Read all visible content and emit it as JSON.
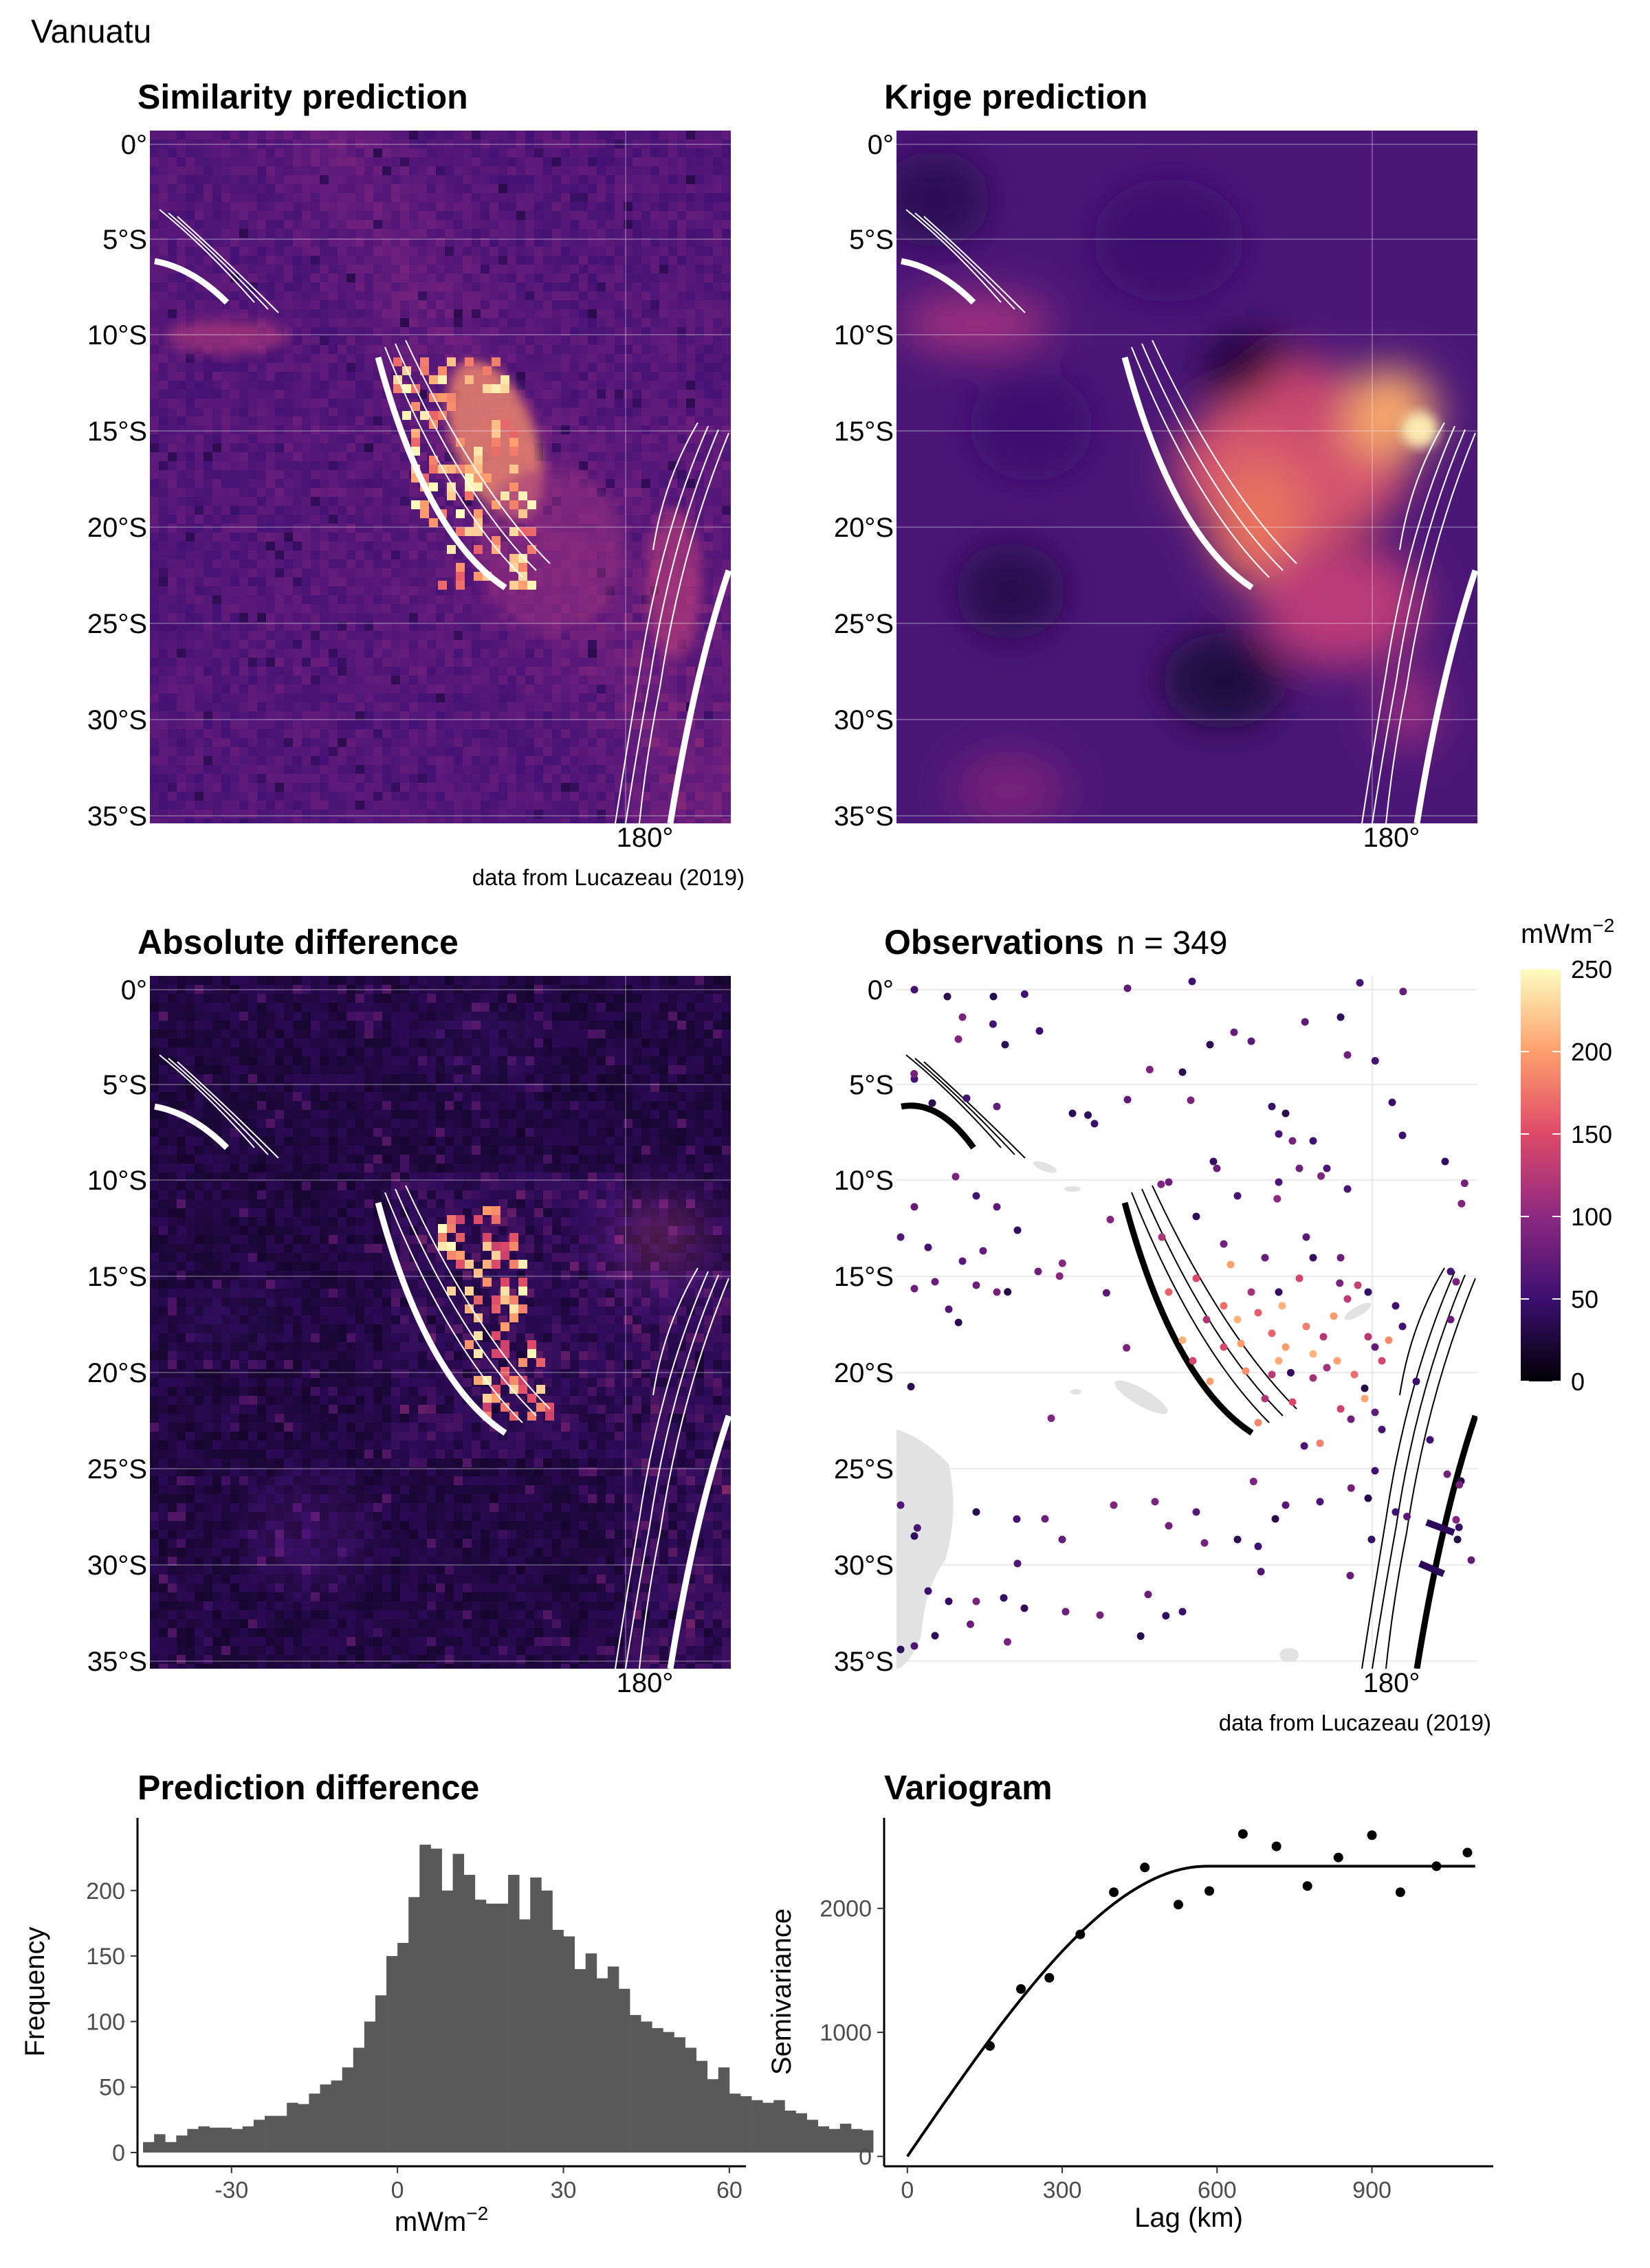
{
  "page_title": "Vanuatu",
  "source_caption": "data from Lucazeau (2019)",
  "map_panels": {
    "similarity": {
      "title": "Similarity prediction"
    },
    "krige": {
      "title": "Krige prediction"
    },
    "absdiff": {
      "title": "Absolute difference"
    },
    "observations": {
      "title": "Observations",
      "n_label": "n = 349",
      "n": 349
    }
  },
  "map_axes": {
    "lat_labels": [
      "0°",
      "5°S",
      "10°S",
      "15°S",
      "20°S",
      "25°S",
      "30°S",
      "35°S"
    ],
    "lon_label": "180°"
  },
  "colorbar": {
    "title_base": "mWm",
    "title_exp": "−2",
    "ticks": [
      "250",
      "200",
      "150",
      "100",
      "50",
      "0"
    ],
    "range": [
      0,
      250
    ],
    "palette": [
      "#000004",
      "#3b0f70",
      "#8c2981",
      "#de4968",
      "#fe9f6d",
      "#fcfdbf"
    ]
  },
  "chart_data": [
    {
      "type": "bar",
      "title": "Prediction difference",
      "xlabel_base": "mWm",
      "xlabel_exp": "−2",
      "ylabel": "Frequency",
      "xlim": [
        -47,
        63
      ],
      "ylim": [
        0,
        245
      ],
      "x_ticks": [
        "-30",
        "0",
        "30",
        "60"
      ],
      "y_ticks": [
        "0",
        "50",
        "100",
        "150",
        "200"
      ],
      "bin_width": 2,
      "bin_start": -46,
      "values": [
        8,
        14,
        8,
        13,
        18,
        20,
        19,
        19,
        18,
        20,
        25,
        28,
        28,
        38,
        37,
        45,
        52,
        55,
        65,
        80,
        100,
        120,
        150,
        160,
        195,
        235,
        232,
        200,
        228,
        212,
        193,
        190,
        190,
        212,
        178,
        210,
        200,
        170,
        165,
        140,
        152,
        133,
        142,
        125,
        105,
        100,
        95,
        92,
        88,
        80,
        70,
        56,
        65,
        45,
        43,
        40,
        38,
        40,
        32,
        30,
        25,
        20,
        18,
        22,
        18,
        17
      ]
    },
    {
      "type": "scatter",
      "title": "Variogram",
      "xlabel": "Lag (km)",
      "ylabel": "Semivariance",
      "xlim": [
        -45,
        1135
      ],
      "ylim": [
        -80,
        2730
      ],
      "x_ticks": [
        "0",
        "300",
        "600",
        "900"
      ],
      "y_ticks": [
        "0",
        "1000",
        "2000"
      ],
      "points": [
        [
          160,
          890
        ],
        [
          220,
          1350
        ],
        [
          275,
          1440
        ],
        [
          335,
          1790
        ],
        [
          400,
          2130
        ],
        [
          460,
          2330
        ],
        [
          525,
          2030
        ],
        [
          585,
          2140
        ],
        [
          650,
          2600
        ],
        [
          715,
          2500
        ],
        [
          775,
          2180
        ],
        [
          835,
          2410
        ],
        [
          900,
          2590
        ],
        [
          955,
          2130
        ],
        [
          1025,
          2340
        ],
        [
          1085,
          2450
        ]
      ],
      "fit": {
        "model": "spherical",
        "sill": 2340,
        "range_km": 580,
        "nugget": 0
      }
    }
  ]
}
